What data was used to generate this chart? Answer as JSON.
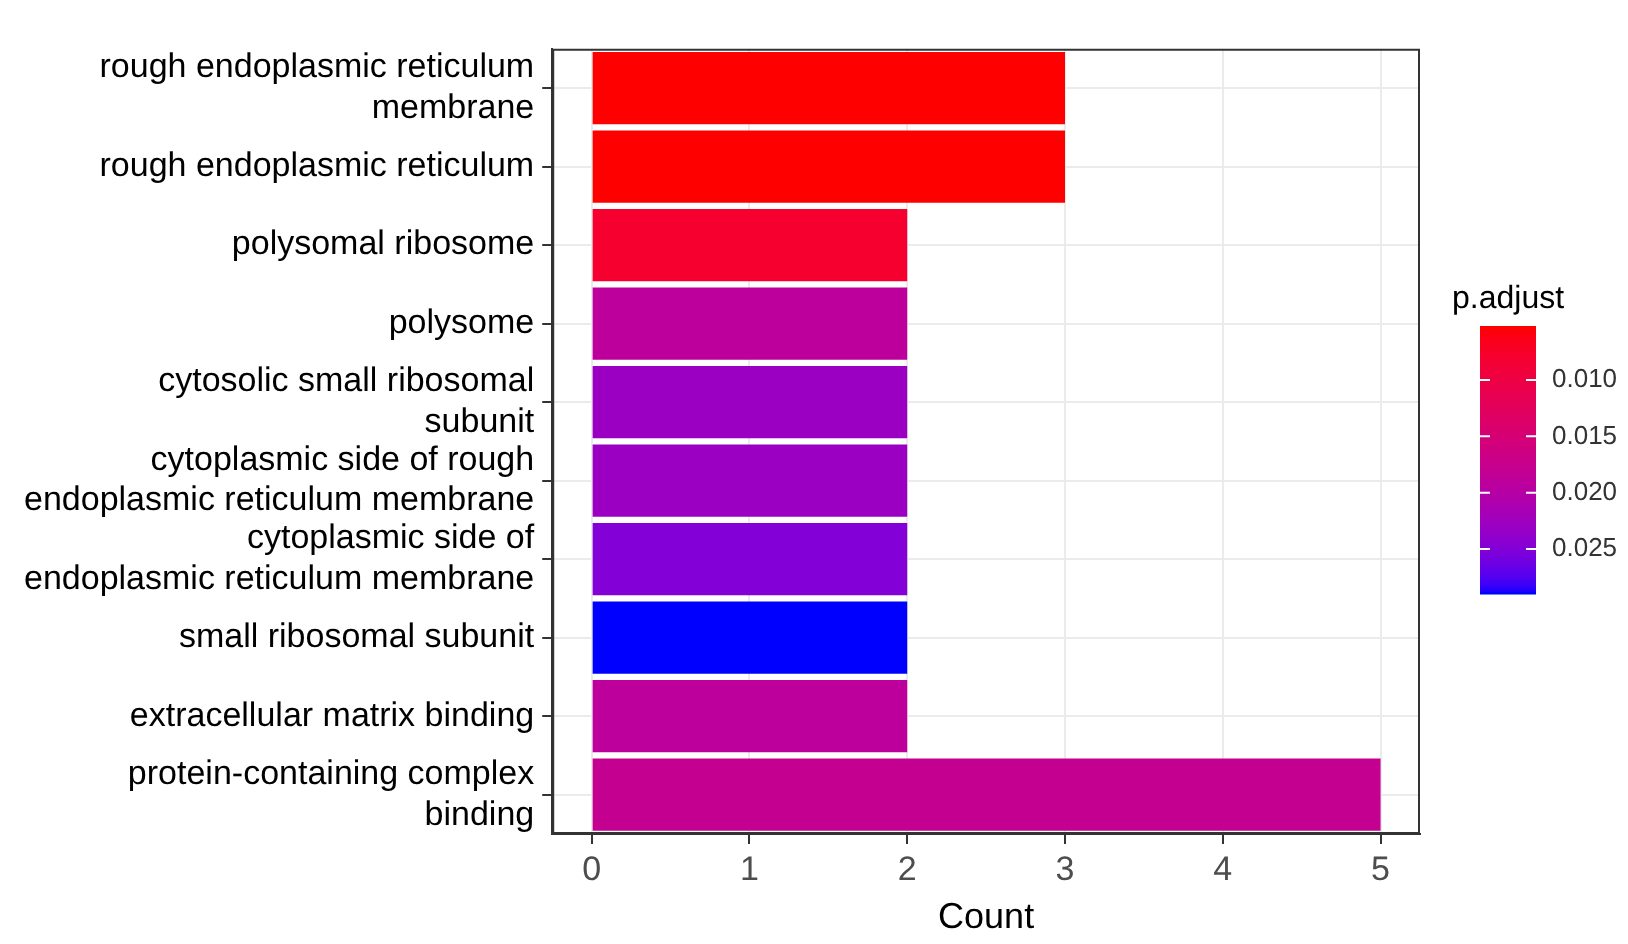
{
  "chart_data": {
    "type": "bar",
    "orientation": "horizontal",
    "xlabel": "Count",
    "clabel": "p.adjust",
    "categories": [
      "rough endoplasmic reticulum membrane",
      "rough endoplasmic reticulum",
      "polysomal ribosome",
      "polysome",
      "cytosolic small ribosomal subunit",
      "cytoplasmic side of rough endoplasmic reticulum membrane",
      "cytoplasmic side of endoplasmic reticulum membrane",
      "small ribosomal subunit",
      "extracellular matrix binding",
      "protein-containing complex binding"
    ],
    "values": [
      3,
      3,
      2,
      2,
      2,
      2,
      2,
      2,
      2,
      5
    ],
    "cvalues": [
      0.0052,
      0.0052,
      0.008,
      0.019,
      0.023,
      0.023,
      0.025,
      0.029,
      0.019,
      0.018
    ],
    "clim": [
      0.0052,
      0.029
    ],
    "cticks": [
      {
        "value": 0.01,
        "label": "0.010"
      },
      0.015,
      {
        "value": 0.02,
        "label": "0.020"
      },
      0.025
    ],
    "xlim": [
      -0.25,
      5.25
    ],
    "xticks": [
      0,
      1,
      2,
      3,
      4,
      5
    ],
    "grid": true,
    "legend": false
  }
}
